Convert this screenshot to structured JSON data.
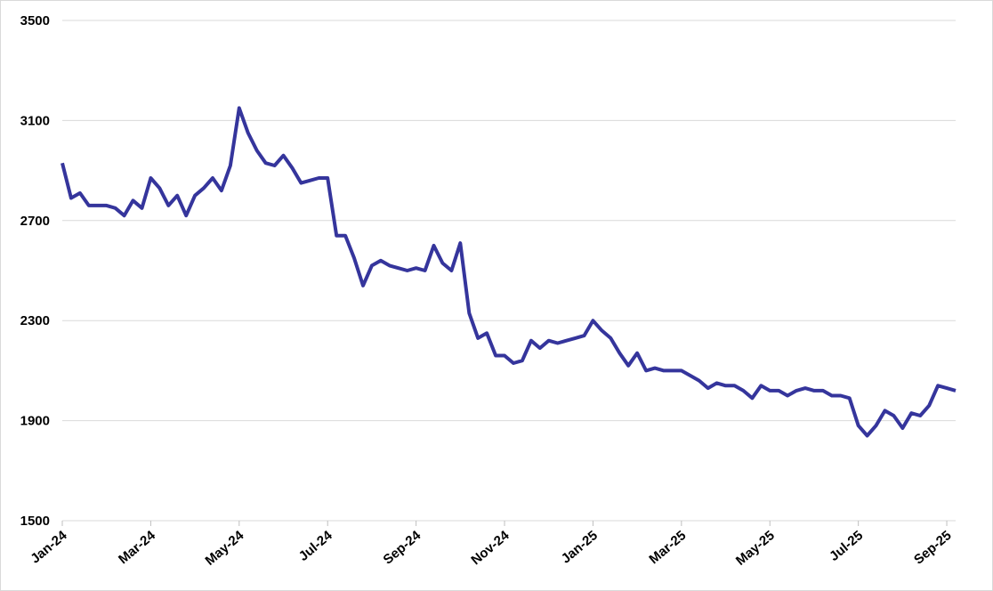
{
  "chart_data": {
    "type": "line",
    "categories": [
      "Jan-24",
      null,
      null,
      null,
      null,
      null,
      null,
      null,
      null,
      null,
      "Mar-24",
      null,
      null,
      null,
      null,
      null,
      null,
      null,
      null,
      null,
      "May-24",
      null,
      null,
      null,
      null,
      null,
      null,
      null,
      null,
      null,
      "Jul-24",
      null,
      null,
      null,
      null,
      null,
      null,
      null,
      null,
      null,
      "Sep-24",
      null,
      null,
      null,
      null,
      null,
      null,
      null,
      null,
      null,
      "Nov-24",
      null,
      null,
      null,
      null,
      null,
      null,
      null,
      null,
      null,
      "Jan-25",
      null,
      null,
      null,
      null,
      null,
      null,
      null,
      null,
      null,
      "Mar-25",
      null,
      null,
      null,
      null,
      null,
      null,
      null,
      null,
      null,
      "May-25",
      null,
      null,
      null,
      null,
      null,
      null,
      null,
      null,
      null,
      "Jul-25",
      null,
      null,
      null,
      null,
      null,
      null,
      null,
      null,
      null,
      "Sep-25",
      null
    ],
    "series": [
      {
        "color": "#35359c",
        "values": [
          2930,
          2790,
          2810,
          2760,
          2760,
          2760,
          2750,
          2720,
          2780,
          2750,
          2870,
          2830,
          2760,
          2800,
          2720,
          2800,
          2830,
          2870,
          2820,
          2920,
          3150,
          3050,
          2980,
          2930,
          2920,
          2960,
          2910,
          2850,
          2860,
          2870,
          2870,
          2640,
          2640,
          2550,
          2440,
          2520,
          2540,
          2520,
          2510,
          2500,
          2510,
          2500,
          2600,
          2530,
          2500,
          2610,
          2330,
          2230,
          2250,
          2160,
          2160,
          2130,
          2140,
          2220,
          2190,
          2220,
          2210,
          2220,
          2230,
          2240,
          2300,
          2260,
          2230,
          2170,
          2120,
          2170,
          2100,
          2110,
          2100,
          2100,
          2100,
          2080,
          2060,
          2030,
          2050,
          2040,
          2040,
          2020,
          1990,
          2040,
          2020,
          2020,
          2000,
          2020,
          2030,
          2020,
          2020,
          2000,
          2000,
          1990,
          1880,
          1840,
          1880,
          1940,
          1920,
          1870,
          1930,
          1920,
          1960,
          2040,
          2030,
          2020
        ]
      }
    ],
    "ylim": [
      1500,
      3500
    ],
    "yticks": [
      1500,
      1900,
      2300,
      2700,
      3100,
      3500
    ],
    "grid": true
  }
}
